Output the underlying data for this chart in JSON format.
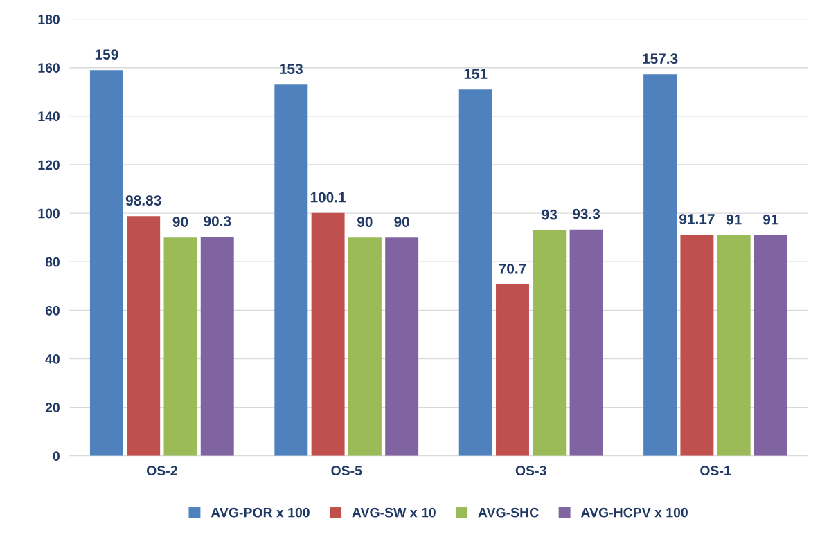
{
  "chart_data": {
    "type": "bar",
    "categories": [
      "OS-2",
      "OS-5",
      "OS-3",
      "OS-1"
    ],
    "series": [
      {
        "name": "AVG-POR x 100",
        "color": "#4f81bd",
        "values": [
          159,
          153,
          151,
          157.3
        ]
      },
      {
        "name": "AVG-SW x 10",
        "color": "#c0504d",
        "values": [
          98.83,
          100.1,
          70.7,
          91.17
        ]
      },
      {
        "name": "AVG-SHC",
        "color": "#9bbb59",
        "values": [
          90,
          90,
          93,
          91
        ]
      },
      {
        "name": "AVG-HCPV x 100",
        "color": "#8064a2",
        "values": [
          90.3,
          90,
          93.3,
          91
        ]
      }
    ],
    "ylim": [
      0,
      180
    ],
    "yticks": [
      0,
      20,
      40,
      60,
      80,
      100,
      120,
      140,
      160,
      180
    ],
    "grid": "y",
    "legend": "bottom",
    "data_labels": true
  }
}
